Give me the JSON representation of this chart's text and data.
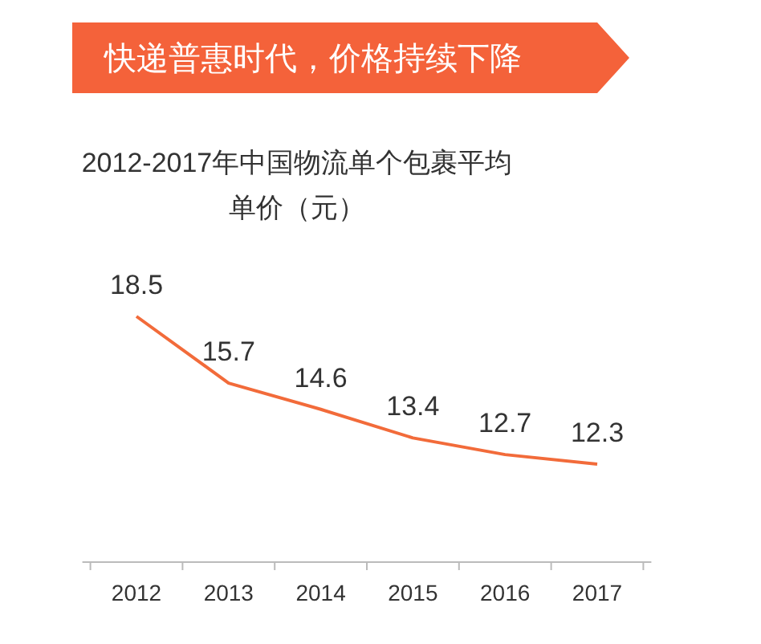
{
  "chart_data": {
    "type": "line",
    "title": "快递普惠时代，价格持续下降",
    "subtitle": "2012-2017年中国物流单个包裹平均单价（元）",
    "categories": [
      "2012",
      "2013",
      "2014",
      "2015",
      "2016",
      "2017"
    ],
    "series": [
      {
        "color": "#f26b3a",
        "values": [
          18.5,
          15.7,
          14.6,
          13.4,
          12.7,
          12.3
        ]
      }
    ],
    "data_labels": true,
    "line_style": "solid"
  }
}
